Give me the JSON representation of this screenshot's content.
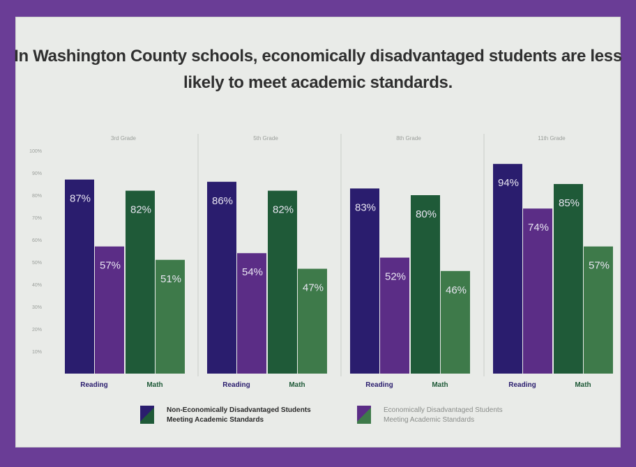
{
  "title": "In Washington County schools, economically disadvantaged students are less likely to meet academic standards.",
  "colors": {
    "reading_non": "#2a1d6e",
    "reading_econ": "#5b2d86",
    "math_non": "#1f5a38",
    "math_econ": "#3e7a4a",
    "border": "#6a3d96",
    "panel": "#e9ebe8"
  },
  "legend": {
    "non_label": "Non-Economically Disadvantaged Students\nMeeting Academic Standards",
    "econ_label": "Economically Disadvantaged Students\nMeeting Academic Standards"
  },
  "chart_data": {
    "type": "bar",
    "ylim": [
      0,
      100
    ],
    "yticks": [
      "10%",
      "20%",
      "30%",
      "40%",
      "50%",
      "60%",
      "70%",
      "80%",
      "90%",
      "100%"
    ],
    "groups": [
      {
        "label": "3rd Grade",
        "subjects": [
          {
            "name": "Reading",
            "non": 87,
            "econ": 57,
            "non_label": "87%",
            "econ_label": "57%"
          },
          {
            "name": "Math",
            "non": 82,
            "econ": 51,
            "non_label": "82%",
            "econ_label": "51%"
          }
        ]
      },
      {
        "label": "5th Grade",
        "subjects": [
          {
            "name": "Reading",
            "non": 86,
            "econ": 54,
            "non_label": "86%",
            "econ_label": "54%"
          },
          {
            "name": "Math",
            "non": 82,
            "econ": 47,
            "non_label": "82%",
            "econ_label": "47%"
          }
        ]
      },
      {
        "label": "8th Grade",
        "subjects": [
          {
            "name": "Reading",
            "non": 83,
            "econ": 52,
            "non_label": "83%",
            "econ_label": "52%"
          },
          {
            "name": "Math",
            "non": 80,
            "econ": 46,
            "non_label": "80%",
            "econ_label": "46%"
          }
        ]
      },
      {
        "label": "11th Grade",
        "subjects": [
          {
            "name": "Reading",
            "non": 94,
            "econ": 74,
            "non_label": "94%",
            "econ_label": "74%"
          },
          {
            "name": "Math",
            "non": 85,
            "econ": 57,
            "non_label": "85%",
            "econ_label": "57%"
          }
        ]
      }
    ]
  }
}
